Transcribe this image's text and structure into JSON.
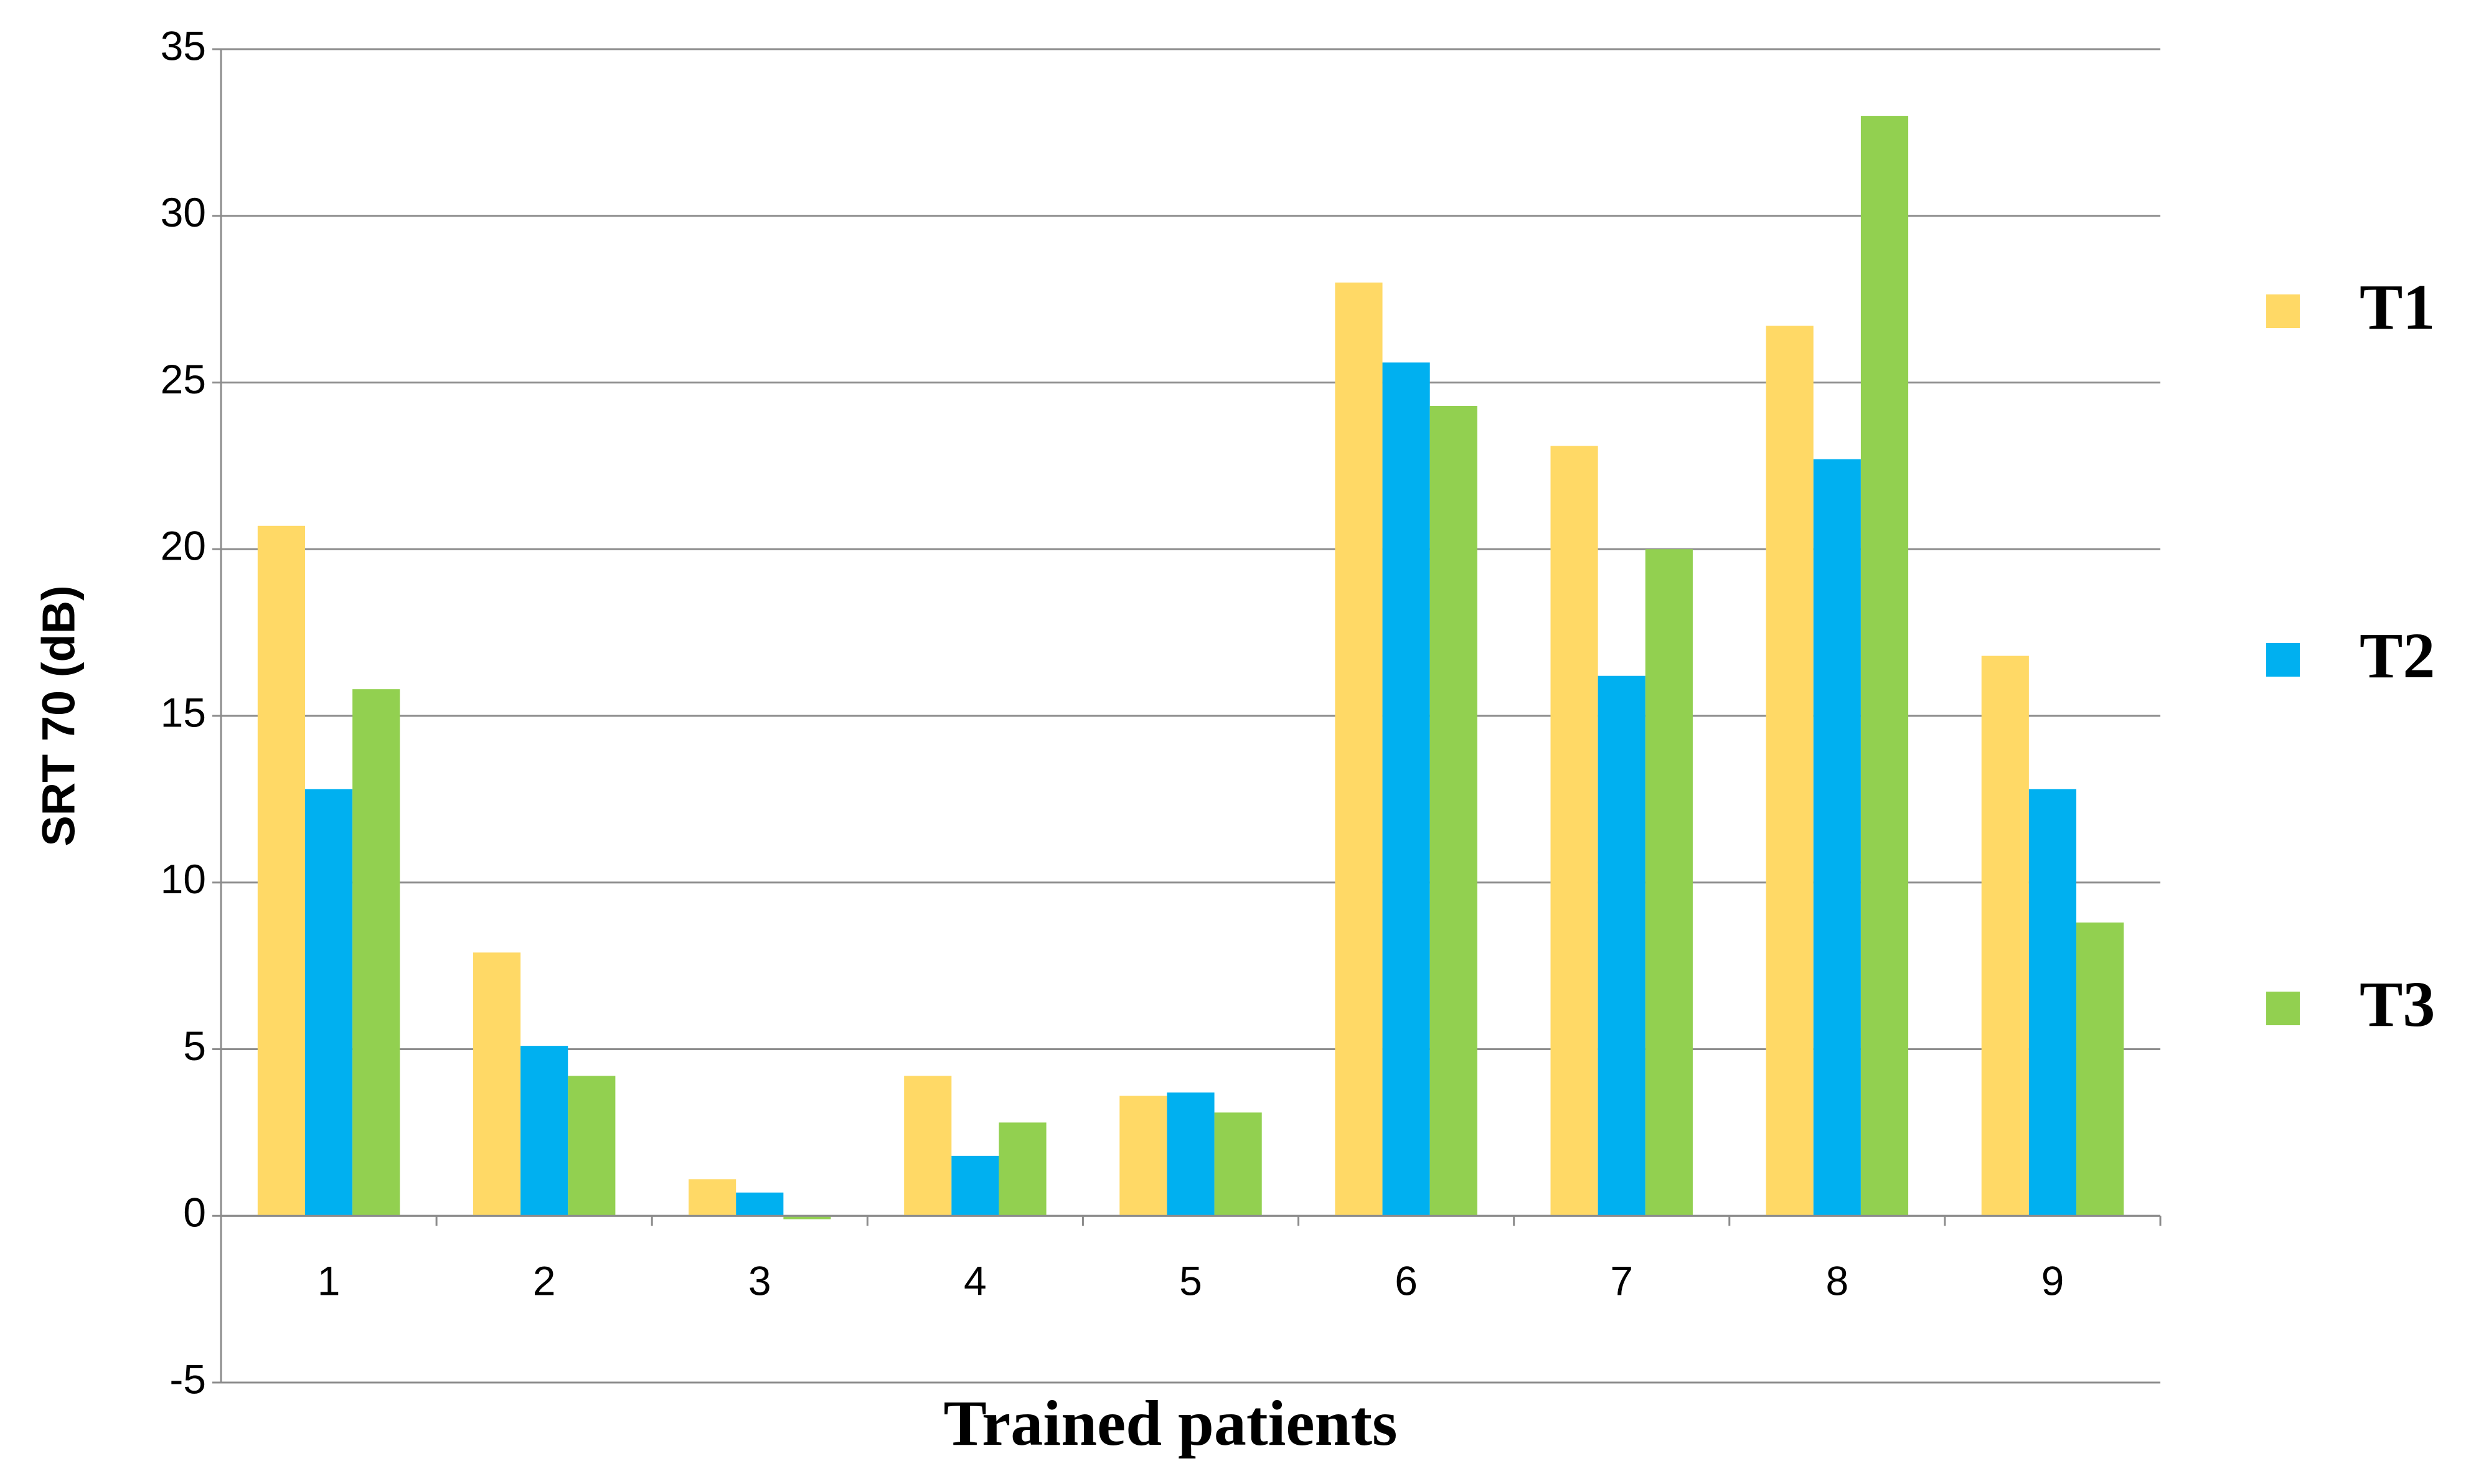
{
  "chart_data": {
    "type": "bar",
    "x_label": "Trained patients",
    "y_label": "SRT 70 (dB)",
    "categories": [
      "1",
      "2",
      "3",
      "4",
      "5",
      "6",
      "7",
      "8",
      "9"
    ],
    "series": [
      {
        "name": "T1",
        "color": "#ffd966",
        "values": [
          20.7,
          7.9,
          1.1,
          4.2,
          3.6,
          28.0,
          23.1,
          26.7,
          16.8
        ]
      },
      {
        "name": "T2",
        "color": "#00b0f0",
        "values": [
          12.8,
          5.1,
          0.7,
          1.8,
          3.7,
          25.6,
          16.2,
          22.7,
          12.8
        ]
      },
      {
        "name": "T3",
        "color": "#92d050",
        "values": [
          15.8,
          4.2,
          -0.1,
          2.8,
          3.1,
          24.3,
          20.0,
          33.0,
          8.8
        ]
      }
    ],
    "ylim": [
      -5,
      35
    ],
    "yticks": [
      -5,
      0,
      5,
      10,
      15,
      20,
      25,
      30,
      35
    ],
    "grid": true,
    "legend": "right"
  }
}
